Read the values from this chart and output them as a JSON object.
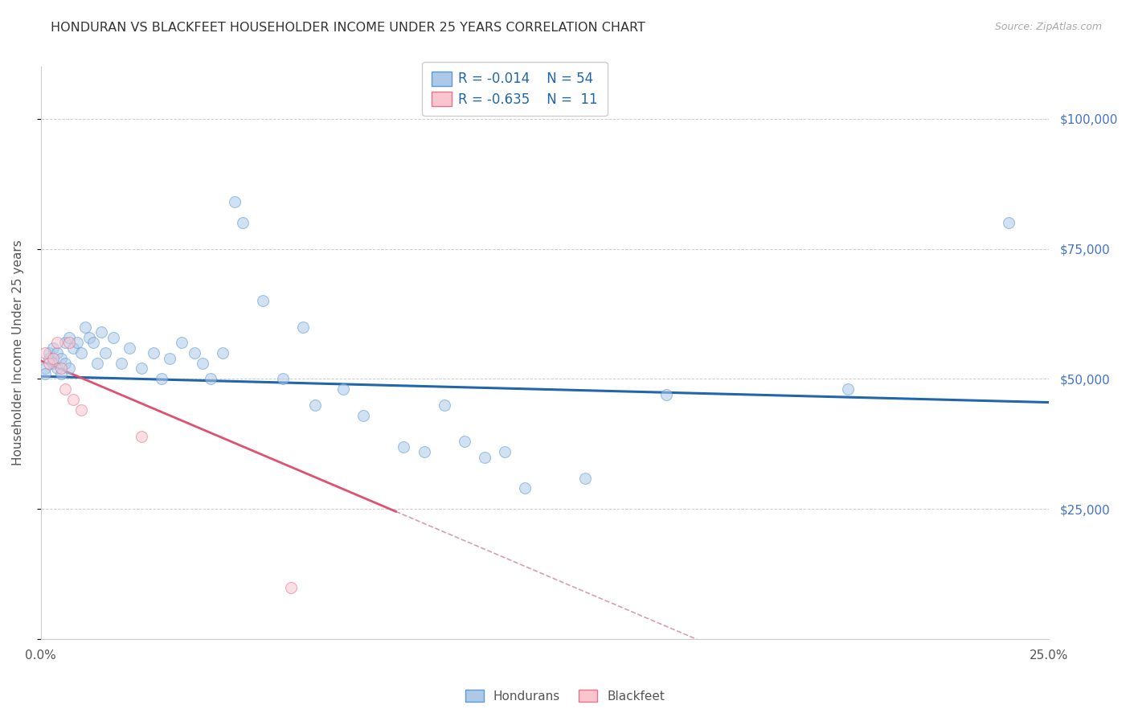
{
  "title": "HONDURAN VS BLACKFEET HOUSEHOLDER INCOME UNDER 25 YEARS CORRELATION CHART",
  "source": "Source: ZipAtlas.com",
  "ylabel": "Householder Income Under 25 years",
  "xmin": 0.0,
  "xmax": 0.25,
  "ymin": 0,
  "ymax": 110000,
  "hondurans_x": [
    0.001,
    0.001,
    0.002,
    0.002,
    0.003,
    0.003,
    0.004,
    0.004,
    0.005,
    0.005,
    0.006,
    0.006,
    0.007,
    0.007,
    0.008,
    0.009,
    0.01,
    0.011,
    0.012,
    0.013,
    0.014,
    0.015,
    0.016,
    0.018,
    0.02,
    0.022,
    0.025,
    0.028,
    0.03,
    0.032,
    0.035,
    0.038,
    0.04,
    0.042,
    0.045,
    0.048,
    0.05,
    0.055,
    0.06,
    0.065,
    0.068,
    0.075,
    0.08,
    0.09,
    0.095,
    0.1,
    0.105,
    0.11,
    0.115,
    0.12,
    0.135,
    0.155,
    0.2,
    0.24
  ],
  "hondurans_y": [
    52000,
    51000,
    54000,
    55000,
    53000,
    56000,
    52000,
    55000,
    51000,
    54000,
    57000,
    53000,
    58000,
    52000,
    56000,
    57000,
    55000,
    60000,
    58000,
    57000,
    53000,
    59000,
    55000,
    58000,
    53000,
    56000,
    52000,
    55000,
    50000,
    54000,
    57000,
    55000,
    53000,
    50000,
    55000,
    84000,
    80000,
    65000,
    50000,
    60000,
    45000,
    48000,
    43000,
    37000,
    36000,
    45000,
    38000,
    35000,
    36000,
    29000,
    31000,
    47000,
    48000,
    80000
  ],
  "blackfeet_x": [
    0.001,
    0.002,
    0.003,
    0.004,
    0.005,
    0.006,
    0.007,
    0.008,
    0.01,
    0.025,
    0.062
  ],
  "blackfeet_y": [
    55000,
    53000,
    54000,
    57000,
    52000,
    48000,
    57000,
    46000,
    44000,
    39000,
    10000
  ],
  "hondurans_color": "#aec9e8",
  "hondurans_edge_color": "#5b9bd5",
  "blackfeet_color": "#f9c6d0",
  "blackfeet_edge_color": "#e8728a",
  "hondurans_line_color": "#2166ac",
  "blackfeet_line_color": "#e05070",
  "blackfeet_dash_color": "#d4a0b0",
  "marker_size": 100,
  "marker_alpha": 0.55,
  "grid_color": "#cccccc",
  "background_color": "#ffffff",
  "title_color": "#333333",
  "right_tick_color": "#4472c4",
  "source_color": "#aaaaaa",
  "legend_label_color": "#2166ac"
}
